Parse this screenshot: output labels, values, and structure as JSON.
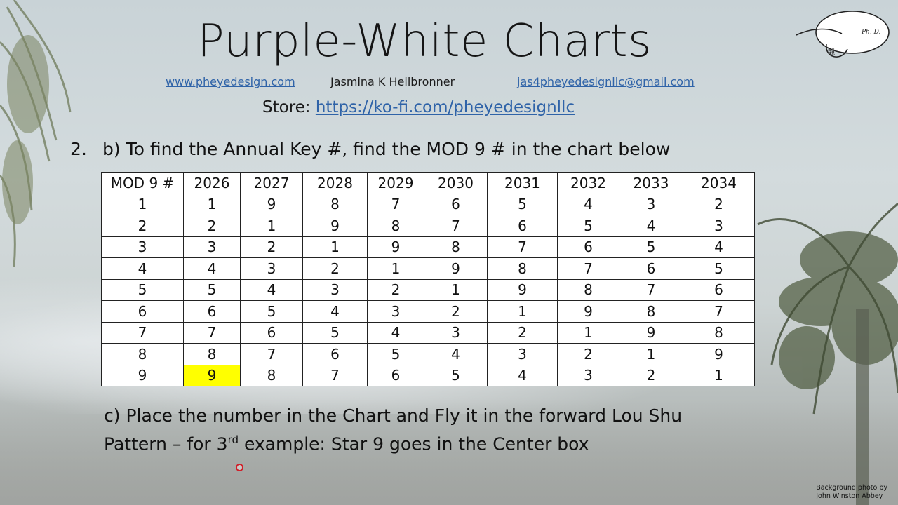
{
  "title": "Purple-White Charts",
  "contact": {
    "website": "www.pheyedesign.com",
    "author": "Jasmina K Heilbronner",
    "email": "jas4pheyedesignllc@gmail.com"
  },
  "store": {
    "label": "Store:",
    "url": "https://ko-fi.com/pheyedesignllc"
  },
  "logo": {
    "initials": "Ph. D.",
    "glyph": "觀"
  },
  "step": {
    "number": "2.",
    "text": "b) To find the Annual Key #, find the MOD 9 # in the chart below"
  },
  "table": {
    "headers": [
      "MOD 9 #",
      "2026",
      "2027",
      "2028",
      "2029",
      "2030",
      "2031",
      "2032",
      "2033",
      "2034"
    ],
    "rows": [
      [
        "1",
        "1",
        "9",
        "8",
        "7",
        "6",
        "5",
        "4",
        "3",
        "2"
      ],
      [
        "2",
        "2",
        "1",
        "9",
        "8",
        "7",
        "6",
        "5",
        "4",
        "3"
      ],
      [
        "3",
        "3",
        "2",
        "1",
        "9",
        "8",
        "7",
        "6",
        "5",
        "4"
      ],
      [
        "4",
        "4",
        "3",
        "2",
        "1",
        "9",
        "8",
        "7",
        "6",
        "5"
      ],
      [
        "5",
        "5",
        "4",
        "3",
        "2",
        "1",
        "9",
        "8",
        "7",
        "6"
      ],
      [
        "6",
        "6",
        "5",
        "4",
        "3",
        "2",
        "1",
        "9",
        "8",
        "7"
      ],
      [
        "7",
        "7",
        "6",
        "5",
        "4",
        "3",
        "2",
        "1",
        "9",
        "8"
      ],
      [
        "8",
        "8",
        "7",
        "6",
        "5",
        "4",
        "3",
        "2",
        "1",
        "9"
      ],
      [
        "9",
        "9",
        "8",
        "7",
        "6",
        "5",
        "4",
        "3",
        "2",
        "1"
      ]
    ],
    "highlight": {
      "row": 8,
      "col": 1,
      "color": "#ffff00"
    }
  },
  "note": {
    "line1": "c) Place the number in the Chart and Fly it in the forward Lou Shu",
    "line2_before": "Pattern – for 3",
    "line2_sup": "rd",
    "line2_after": " example: Star 9 goes in the Center box"
  },
  "credit": {
    "line1": "Background photo by",
    "line2": "John Winston Abbey"
  },
  "colors": {
    "link": "#2f63a8",
    "highlight": "#ffff00"
  }
}
